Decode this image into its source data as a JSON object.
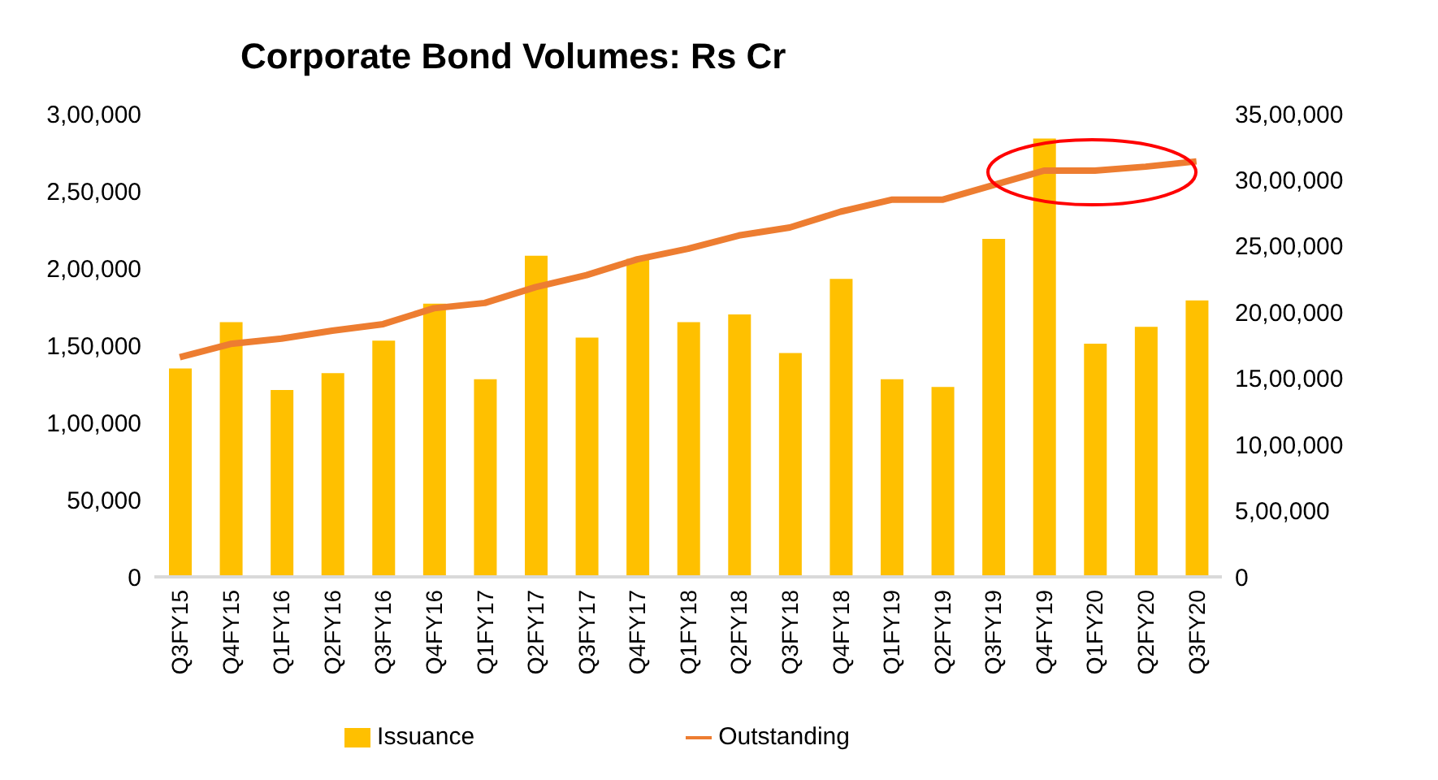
{
  "chart_data": {
    "type": "bar",
    "title": "Corporate Bond Volumes: Rs Cr",
    "categories": [
      "Q3FY15",
      "Q4FY15",
      "Q1FY16",
      "Q2FY16",
      "Q3FY16",
      "Q4FY16",
      "Q1FY17",
      "Q2FY17",
      "Q3FY17",
      "Q4FY17",
      "Q1FY18",
      "Q2FY18",
      "Q3FY18",
      "Q4FY18",
      "Q1FY19",
      "Q2FY19",
      "Q3FY19",
      "Q4FY19",
      "Q1FY20",
      "Q2FY20",
      "Q3FY20"
    ],
    "series": [
      {
        "name": "Issuance",
        "color": "#ffc000",
        "values": [
          135000,
          165000,
          121000,
          132000,
          153000,
          177000,
          128000,
          208000,
          155000,
          206000,
          165000,
          170000,
          145000,
          193000,
          128000,
          123000,
          219000,
          284000,
          151000,
          162000,
          179000
        ]
      },
      {
        "name": "Outstanding",
        "type": "line",
        "axis": "y2",
        "color": "#ed7d31",
        "values": [
          1660000,
          1760000,
          1800000,
          1860000,
          1910000,
          2030000,
          2070000,
          2190000,
          2280000,
          2400000,
          2480000,
          2580000,
          2640000,
          2760000,
          2850000,
          2850000,
          2960000,
          3070000,
          3070000,
          3100000,
          3140000
        ]
      }
    ],
    "ylim": [
      0,
      300000
    ],
    "yticks": [
      {
        "value": 0,
        "label": "0"
      },
      {
        "value": 50000,
        "label": "50,000"
      },
      {
        "value": 100000,
        "label": "1,00,000"
      },
      {
        "value": 150000,
        "label": "1,50,000"
      },
      {
        "value": 200000,
        "label": "2,00,000"
      },
      {
        "value": 250000,
        "label": "2,50,000"
      },
      {
        "value": 300000,
        "label": "3,00,000"
      }
    ],
    "y2lim": [
      0,
      3500000
    ],
    "y2ticks": [
      {
        "value": 0,
        "label": "0"
      },
      {
        "value": 500000,
        "label": "5,00,000"
      },
      {
        "value": 1000000,
        "label": "10,00,000"
      },
      {
        "value": 1500000,
        "label": "15,00,000"
      },
      {
        "value": 2000000,
        "label": "20,00,000"
      },
      {
        "value": 2500000,
        "label": "25,00,000"
      },
      {
        "value": 3000000,
        "label": "30,00,000"
      },
      {
        "value": 3500000,
        "label": "35,00,000"
      }
    ],
    "grid": false,
    "legend": "bottom",
    "marker": "none",
    "line_style": "solid"
  }
}
